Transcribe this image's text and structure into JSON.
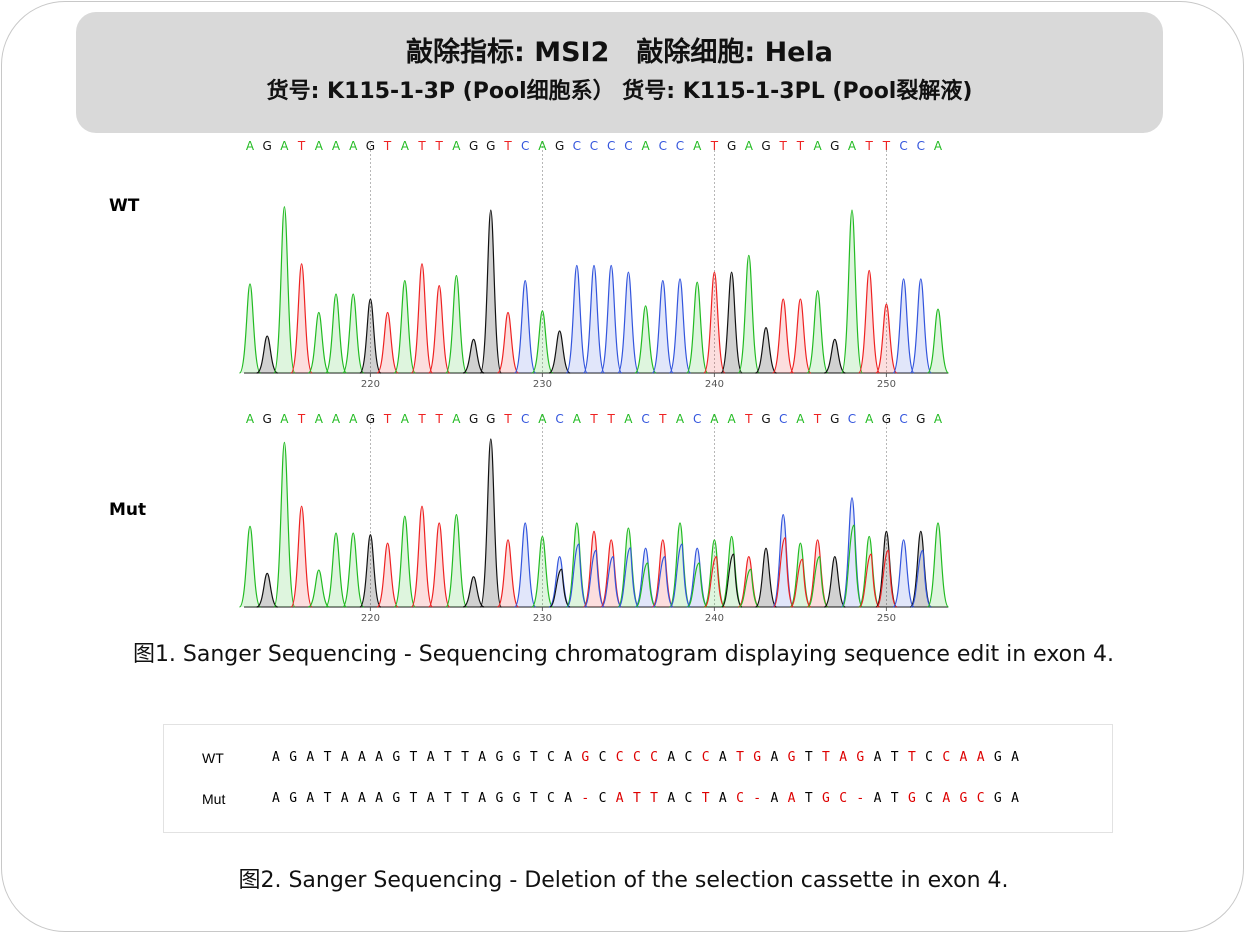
{
  "header": {
    "line1": "敲除指标: MSI2　敲除细胞: Hela",
    "line2": "货号: K115-1-3P (Pool细胞系）  货号: K115-1-3PL (Pool裂解液)"
  },
  "base_colors": {
    "A": "#22bb22",
    "G": "#111111",
    "T": "#ee2222",
    "C": "#3355dd"
  },
  "chromatograms": [
    {
      "label": "WT",
      "sequence": "AGATAAAGTATTAGGTCAGCCCCACCATGAGTTAGATTCCA",
      "ticks": [
        220,
        230,
        240,
        250
      ],
      "first_position": 213,
      "peak_heights": [
        0.53,
        0.22,
        0.99,
        0.65,
        0.36,
        0.47,
        0.47,
        0.44,
        0.36,
        0.55,
        0.65,
        0.52,
        0.58,
        0.2,
        0.97,
        0.36,
        0.55,
        0.37,
        0.25,
        0.64,
        0.64,
        0.64,
        0.6,
        0.4,
        0.55,
        0.56,
        0.54,
        0.6,
        0.6,
        0.7,
        0.27,
        0.44,
        0.44,
        0.49,
        0.2,
        0.97,
        0.61,
        0.41,
        0.56,
        0.56,
        0.38
      ],
      "mixed": false
    },
    {
      "label": "Mut",
      "sequence": "AGATAAAGTATTAGGTCACATTACTACAATGCATGCAGCGA",
      "ticks": [
        220,
        230,
        240,
        250
      ],
      "first_position": 213,
      "peak_heights": [
        0.48,
        0.2,
        0.98,
        0.6,
        0.22,
        0.44,
        0.44,
        0.43,
        0.38,
        0.54,
        0.6,
        0.5,
        0.55,
        0.18,
        1.0,
        0.4,
        0.5,
        0.42,
        0.3,
        0.5,
        0.45,
        0.4,
        0.47,
        0.35,
        0.4,
        0.5,
        0.35,
        0.4,
        0.42,
        0.3,
        0.35,
        0.55,
        0.38,
        0.4,
        0.3,
        0.65,
        0.42,
        0.45,
        0.4,
        0.45,
        0.5
      ],
      "mixed": true
    }
  ],
  "caption1": "图1. Sanger Sequencing - Sequencing chromatogram displaying sequence edit in exon 4.",
  "alignment": {
    "diff_color": "#dd0000",
    "rows": [
      {
        "name": "WT",
        "sequence": "AGATAAAGTATTAGGTCAGCCCCACCATGAGTTAGATTCCAAGA"
      },
      {
        "name": "Mut",
        "sequence": "AGATAAAGTATTAGGTCA-CATTACTAC-AATGC-ATGCAGCGA"
      }
    ]
  },
  "caption2": "图2. Sanger Sequencing - Deletion of the selection cassette in exon 4."
}
